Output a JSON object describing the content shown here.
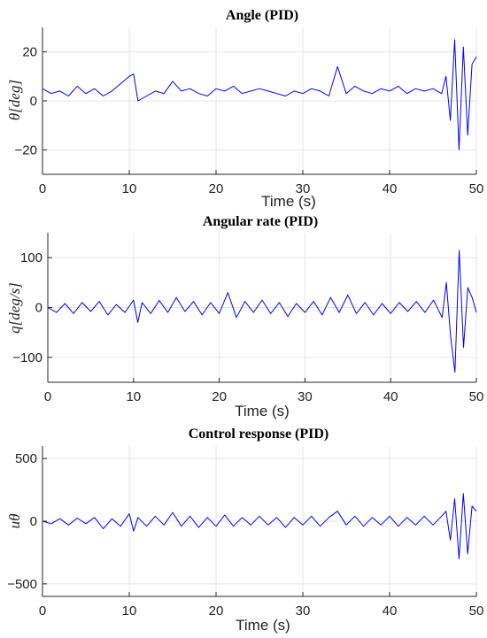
{
  "chart_data": [
    {
      "type": "line",
      "title": "Angle (PID)",
      "xlabel": "Time (s)",
      "ylabel": "θ[deg]",
      "xlim": [
        0,
        50
      ],
      "ylim": [
        -30,
        30
      ],
      "xticks": [
        0,
        10,
        20,
        30,
        40,
        50
      ],
      "yticks": [
        -20,
        0,
        20
      ],
      "ytick_labels": [
        "−20",
        "0",
        "20"
      ],
      "xtick_labels": [
        "0",
        "10",
        "20",
        "30",
        "40",
        "50"
      ],
      "grid": true,
      "color": "#0000ff",
      "series": [
        {
          "x": [
            0,
            1,
            2,
            3,
            4,
            5,
            6,
            7,
            8,
            9,
            10,
            10.5,
            11,
            12,
            13,
            14,
            15,
            16,
            17,
            18,
            19,
            20,
            21,
            22,
            23,
            24,
            25,
            26,
            27,
            28,
            29,
            30,
            31,
            32,
            33,
            34,
            35,
            36,
            37,
            38,
            39,
            40,
            41,
            42,
            43,
            44,
            45,
            46,
            46.5,
            47,
            47.5,
            48,
            48.5,
            49,
            49.5,
            50
          ],
          "y": [
            5,
            3,
            4,
            2,
            6,
            3,
            5,
            2,
            4,
            7,
            10,
            11,
            0,
            2,
            4,
            3,
            8,
            4,
            5,
            3,
            2,
            5,
            4,
            6,
            3,
            4,
            5,
            4,
            3,
            2,
            4,
            3,
            5,
            4,
            2,
            14,
            3,
            6,
            4,
            3,
            5,
            4,
            6,
            3,
            5,
            4,
            5,
            3,
            10,
            -8,
            25,
            -20,
            22,
            -14,
            15,
            18
          ]
        }
      ]
    },
    {
      "type": "line",
      "title": "Angular rate (PID)",
      "xlabel": "Time (s)",
      "ylabel": "q[deg/s]",
      "xlim": [
        0,
        50
      ],
      "ylim": [
        -150,
        150
      ],
      "xticks": [
        0,
        10,
        20,
        30,
        40,
        50
      ],
      "yticks": [
        -100,
        0,
        100
      ],
      "ytick_labels": [
        "−100",
        "0",
        "100"
      ],
      "xtick_labels": [
        "0",
        "10",
        "20",
        "30",
        "40",
        "50"
      ],
      "grid": true,
      "color": "#0000ff",
      "series": [
        {
          "x": [
            0,
            1,
            2,
            3,
            4,
            5,
            6,
            7,
            8,
            9,
            10,
            10.5,
            11,
            12,
            13,
            14,
            15,
            16,
            17,
            18,
            19,
            20,
            21,
            22,
            23,
            24,
            25,
            26,
            27,
            28,
            29,
            30,
            31,
            32,
            33,
            34,
            35,
            36,
            37,
            38,
            39,
            40,
            41,
            42,
            43,
            44,
            45,
            46,
            46.5,
            47,
            47.5,
            48,
            48.5,
            49,
            49.5,
            50
          ],
          "y": [
            0,
            -10,
            8,
            -12,
            10,
            -8,
            12,
            -15,
            6,
            -10,
            15,
            -30,
            10,
            -12,
            14,
            -10,
            20,
            -8,
            12,
            -15,
            10,
            -12,
            30,
            -20,
            12,
            -10,
            15,
            -12,
            10,
            -18,
            8,
            -10,
            12,
            -15,
            20,
            -10,
            25,
            -12,
            10,
            -15,
            8,
            -12,
            10,
            -8,
            12,
            -10,
            15,
            -20,
            50,
            -60,
            -130,
            115,
            -80,
            40,
            20,
            -10
          ]
        }
      ]
    },
    {
      "type": "line",
      "title": "Control response (PID)",
      "xlabel": "Time (s)",
      "ylabel": "uθ",
      "xlim": [
        0,
        50
      ],
      "ylim": [
        -600,
        600
      ],
      "xticks": [
        0,
        10,
        20,
        30,
        40,
        50
      ],
      "yticks": [
        -500,
        0,
        500
      ],
      "ytick_labels": [
        "−500",
        "0",
        "500"
      ],
      "xtick_labels": [
        "0",
        "10",
        "20",
        "30",
        "40",
        "50"
      ],
      "grid": true,
      "color": "#0000ff",
      "series": [
        {
          "x": [
            0,
            1,
            2,
            3,
            4,
            5,
            6,
            7,
            8,
            9,
            10,
            10.5,
            11,
            12,
            13,
            14,
            15,
            16,
            17,
            18,
            19,
            20,
            21,
            22,
            23,
            24,
            25,
            26,
            27,
            28,
            29,
            30,
            31,
            32,
            33,
            34,
            35,
            36,
            37,
            38,
            39,
            40,
            41,
            42,
            43,
            44,
            45,
            46,
            46.5,
            47,
            47.5,
            48,
            48.5,
            49,
            49.5,
            50
          ],
          "y": [
            0,
            -20,
            20,
            -30,
            25,
            -20,
            30,
            -60,
            20,
            -40,
            60,
            -80,
            30,
            -40,
            40,
            -30,
            70,
            -40,
            40,
            -50,
            30,
            -40,
            50,
            -40,
            30,
            -30,
            40,
            -30,
            30,
            -50,
            30,
            -30,
            40,
            -40,
            30,
            80,
            -30,
            40,
            -40,
            30,
            -30,
            40,
            -40,
            30,
            -30,
            40,
            -30,
            40,
            80,
            -150,
            180,
            -300,
            220,
            -260,
            120,
            80
          ]
        }
      ]
    }
  ]
}
